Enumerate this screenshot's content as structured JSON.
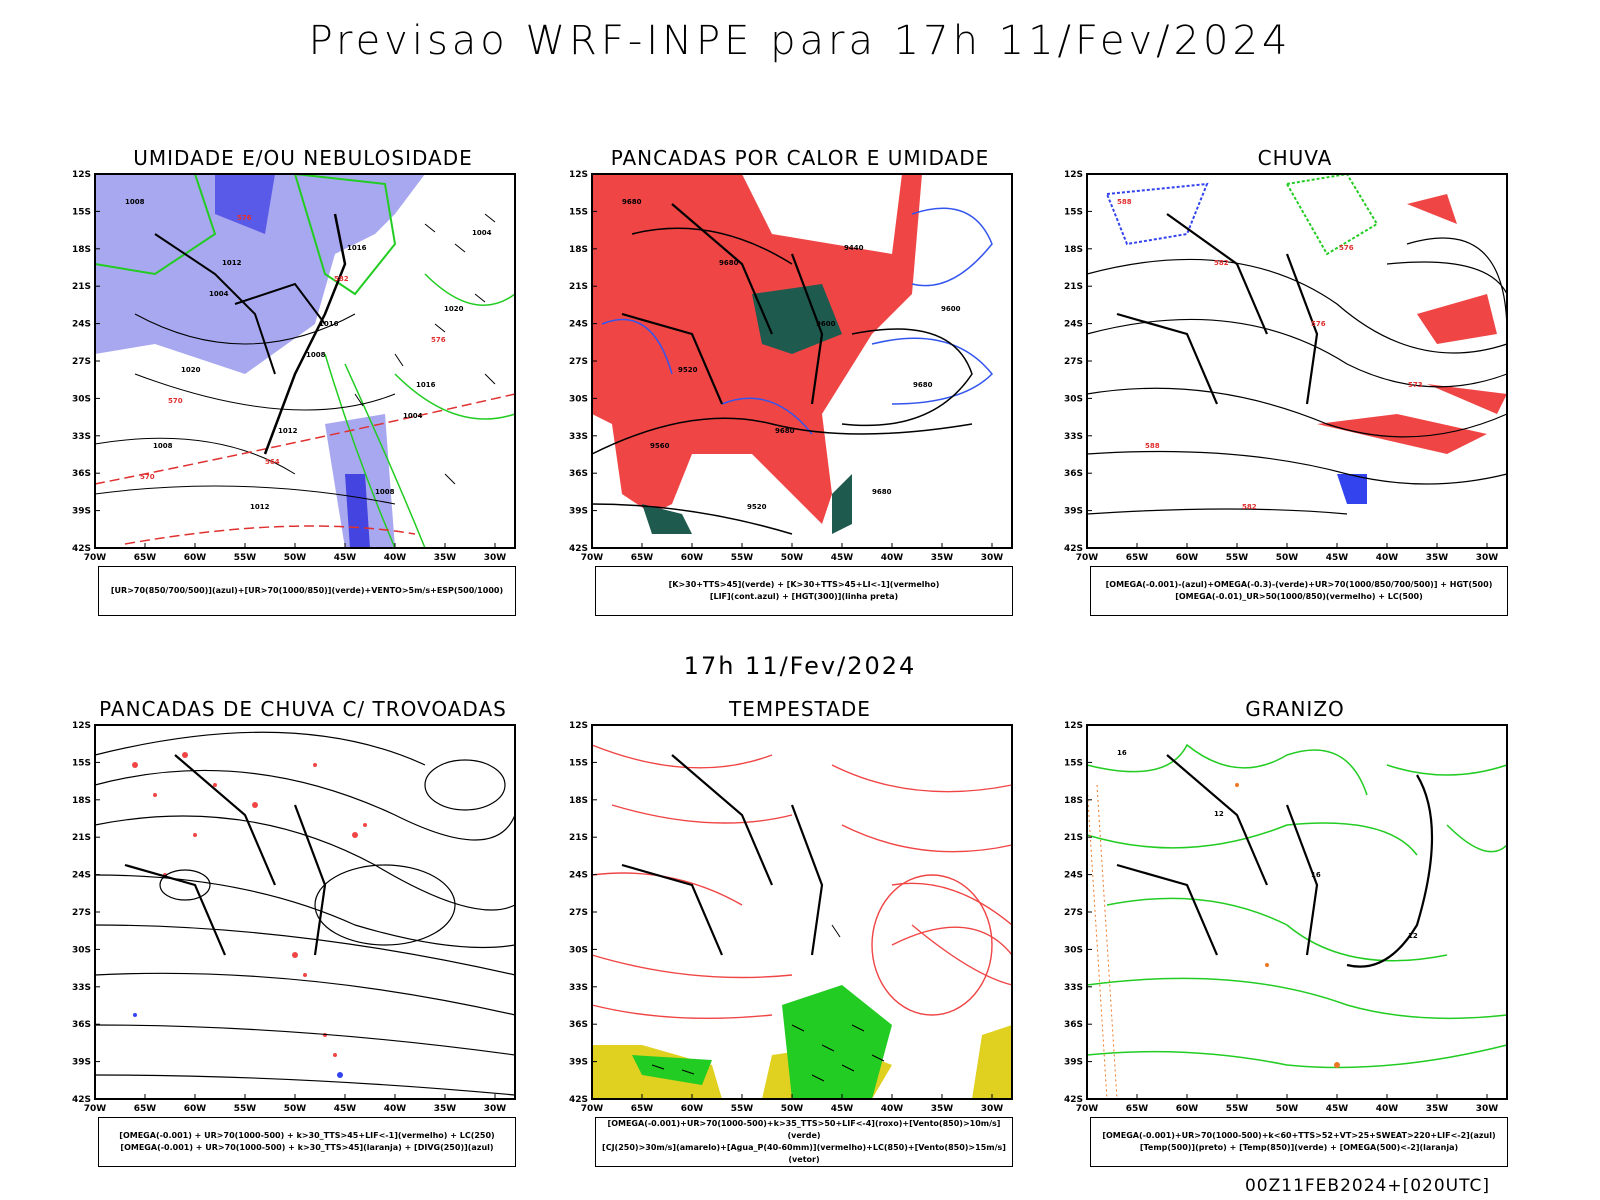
{
  "header": {
    "title": "Previsao WRF-INPE  para 17h 11/Fev/2024"
  },
  "middle": {
    "title": "17h 11/Fev/2024"
  },
  "footer": {
    "stamp": "00Z11FEB2024+[020UTC]"
  },
  "axes": {
    "lat_labels": [
      "12S",
      "15S",
      "18S",
      "21S",
      "24S",
      "27S",
      "30S",
      "33S",
      "36S",
      "39S",
      "42S"
    ],
    "lon_labels": [
      "70W",
      "65W",
      "60W",
      "55W",
      "50W",
      "45W",
      "40W",
      "35W",
      "30W"
    ]
  },
  "panels": [
    {
      "title": "UMIDADE E/OU NEBULOSIDADE",
      "legend": [
        "[UR>70(850/700/500)](azul)+[UR>70(1000/850)](verde)+VENTO>5m/s+ESP(500/1000)"
      ],
      "contour_labels": [
        "1008",
        "1012",
        "1016",
        "1016",
        "1008",
        "1012",
        "1016",
        "1020",
        "1020",
        "1012",
        "1008",
        "1004",
        "1004",
        "1008",
        "1004",
        "570",
        "576",
        "582",
        "576",
        "570",
        "564"
      ]
    },
    {
      "title": "PANCADAS POR CALOR E UMIDADE",
      "legend": [
        "[K>30+TTS>45](verde) + [K>30+TTS>45+LI<-1](vermelho)",
        "[LIF](cont.azul) + [HGT(300)](linha preta)"
      ],
      "contour_labels": [
        "9680",
        "9680",
        "9600",
        "9680",
        "9560",
        "9520",
        "9440",
        "9600",
        "9520",
        "9680",
        "9680"
      ]
    },
    {
      "title": "CHUVA",
      "legend": [
        "[OMEGA(-0.001)-(azul)+OMEGA(-0.3)-(verde)+UR>70(1000/850/700/500)] + HGT(500)",
        "[OMEGA(-0.01)_UR>50(1000/850)(vermelho) + LC(500)"
      ],
      "contour_labels": [
        "588",
        "582",
        "576",
        "573",
        "588",
        "582",
        "576"
      ]
    },
    {
      "title": "PANCADAS DE CHUVA C/ TROVOADAS",
      "legend": [
        "[OMEGA(-0.001) + UR>70(1000-500) + k>30_TTS>45+LIF<-1](vermelho) + LC(250)",
        "[OMEGA(-0.001) + UR>70(1000-500) + k>30_TTS>45](laranja) + [DIVG(250)](azul)"
      ],
      "contour_labels": []
    },
    {
      "title": "TEMPESTADE",
      "legend": [
        "[OMEGA(-0.001)+UR>70(1000-500)+k>35_TTS>50+LIF<-4](roxo)+[Vento(850)>10m/s](verde)",
        "[CJ(250)>30m/s](amarelo)+[Agua_P(40-60mm)](vermelho)+LC(850)+[Vento(850)>15m/s](vetor)"
      ],
      "contour_labels": []
    },
    {
      "title": "GRANIZO",
      "legend": [
        "[OMEGA(-0.001)+UR>70(1000-500)+k<60+TTS>52+VT>25+SWEAT>220+LIF<-2](azul)",
        "[Temp(500)](preto) + [Temp(850)](verde) + [OMEGA(500)<-2](laranja)"
      ],
      "contour_labels": [
        "16",
        "12",
        "16",
        "12"
      ]
    }
  ],
  "colors": {
    "blue": "#3344ee",
    "lightblue": "#a8a8f0",
    "green": "#22cc22",
    "red": "#f04545",
    "darkgreen": "#1e5a4e",
    "yellow": "#e0d020",
    "orange": "#ee7722"
  }
}
